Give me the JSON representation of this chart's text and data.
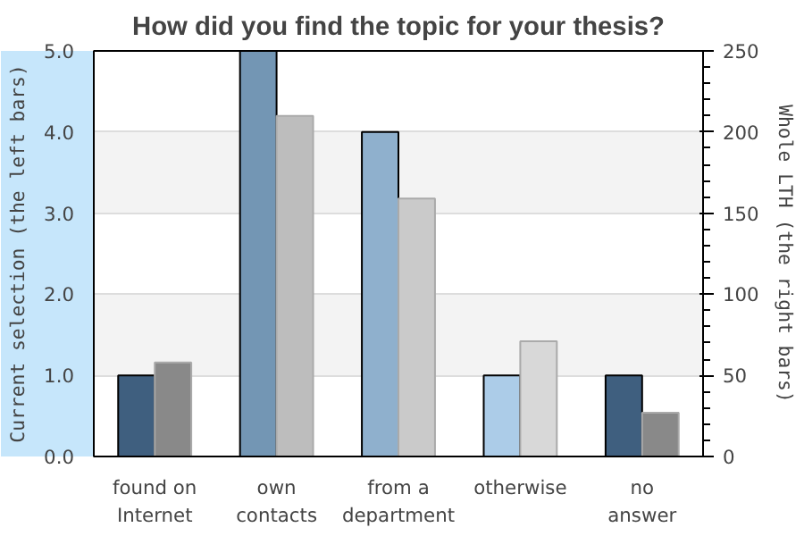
{
  "chart_data": {
    "type": "bar",
    "title": "How did you find the topic for your thesis?",
    "categories": [
      "found on\nInternet",
      "own\ncontacts",
      "from a\ndepartment",
      "otherwise",
      "no\nanswer"
    ],
    "ylabel": "Current selection (the left bars)",
    "y2label": "Whole LTH (the right bars)",
    "ylim": [
      0,
      5
    ],
    "yticks": [
      {
        "value": 0,
        "label": "0.0"
      },
      {
        "value": 1,
        "label": "1.0"
      },
      {
        "value": 2,
        "label": "2.0"
      },
      {
        "value": 3,
        "label": "3.0"
      },
      {
        "value": 4,
        "label": "4.0"
      },
      {
        "value": 5,
        "label": "5.0"
      }
    ],
    "y2lim": [
      0,
      250
    ],
    "y2ticks": [
      0,
      50,
      100,
      150,
      200,
      250
    ],
    "grid": "y",
    "series": [
      {
        "values": [
          1,
          5,
          4,
          1,
          1
        ],
        "colors": [
          "#3f5f7f",
          "#7396b4",
          "#8fb0cd",
          "#accce8",
          "#3f5f7f"
        ]
      },
      {
        "values": [
          58,
          210,
          159,
          71,
          27
        ],
        "colors": [
          "#898989",
          "#bdbdbd",
          "#cacaca",
          "#d8d8d8",
          "#898989"
        ],
        "axis": "y2"
      }
    ]
  }
}
